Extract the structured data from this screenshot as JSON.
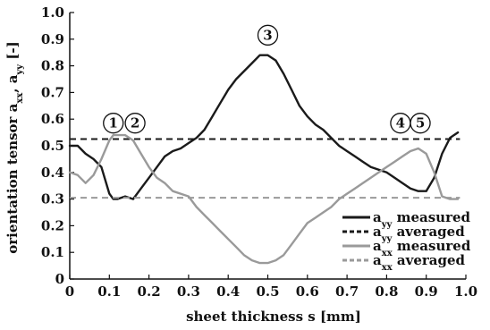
{
  "chart_data": {
    "type": "line",
    "xlabel": "sheet thickness s [mm]",
    "ylabel": "orientation tensor a",
    "ylabel_parts": {
      "main": "orientation tensor a",
      "sub1": "xx",
      "sep": ", a",
      "sub2": "yy",
      "tail": " [-]"
    },
    "xlim": [
      0,
      1.0
    ],
    "ylim": [
      0,
      1.0
    ],
    "x_ticks": [
      "0",
      "0.1",
      "0.2",
      "0.3",
      "0.4",
      "0.5",
      "0.6",
      "0.7",
      "0.8",
      "0.9",
      "1.0"
    ],
    "y_ticks": [
      "0",
      "0.1",
      "0.2",
      "0.3",
      "0.4",
      "0.5",
      "0.6",
      "0.7",
      "0.8",
      "0.9",
      "1.0"
    ],
    "grid": false,
    "legend_position": "bottom-right",
    "series": [
      {
        "name": "a_yy measured",
        "legend_main": "a",
        "legend_sub": "yy",
        "legend_tail": " measured",
        "style": "solid",
        "color": "#1a1a1a",
        "x": [
          0.0,
          0.02,
          0.04,
          0.06,
          0.08,
          0.1,
          0.11,
          0.12,
          0.14,
          0.16,
          0.18,
          0.2,
          0.22,
          0.24,
          0.26,
          0.28,
          0.3,
          0.32,
          0.34,
          0.36,
          0.38,
          0.4,
          0.42,
          0.44,
          0.46,
          0.48,
          0.5,
          0.52,
          0.54,
          0.56,
          0.58,
          0.6,
          0.62,
          0.64,
          0.66,
          0.68,
          0.7,
          0.72,
          0.74,
          0.76,
          0.78,
          0.8,
          0.82,
          0.84,
          0.86,
          0.88,
          0.9,
          0.92,
          0.94,
          0.96,
          0.98
        ],
        "values": [
          0.5,
          0.5,
          0.47,
          0.45,
          0.42,
          0.32,
          0.3,
          0.3,
          0.31,
          0.3,
          0.34,
          0.38,
          0.42,
          0.46,
          0.48,
          0.49,
          0.51,
          0.53,
          0.56,
          0.61,
          0.66,
          0.71,
          0.75,
          0.78,
          0.81,
          0.84,
          0.84,
          0.82,
          0.77,
          0.71,
          0.65,
          0.61,
          0.58,
          0.56,
          0.53,
          0.5,
          0.48,
          0.46,
          0.44,
          0.42,
          0.41,
          0.4,
          0.38,
          0.36,
          0.34,
          0.33,
          0.33,
          0.38,
          0.47,
          0.53,
          0.55
        ]
      },
      {
        "name": "a_yy averaged",
        "legend_main": "a",
        "legend_sub": "yy",
        "legend_tail": " averaged",
        "style": "dashed",
        "color": "#1a1a1a",
        "x": [
          0.0,
          0.985
        ],
        "values": [
          0.525,
          0.525
        ]
      },
      {
        "name": "a_xx measured",
        "legend_main": "a",
        "legend_sub": "xx",
        "legend_tail": " measured",
        "style": "solid",
        "color": "#9a9a9a",
        "x": [
          0.0,
          0.02,
          0.04,
          0.06,
          0.08,
          0.1,
          0.11,
          0.12,
          0.14,
          0.16,
          0.18,
          0.2,
          0.22,
          0.24,
          0.26,
          0.28,
          0.3,
          0.32,
          0.34,
          0.36,
          0.38,
          0.4,
          0.42,
          0.44,
          0.46,
          0.48,
          0.5,
          0.52,
          0.54,
          0.56,
          0.58,
          0.6,
          0.62,
          0.64,
          0.66,
          0.68,
          0.7,
          0.72,
          0.74,
          0.76,
          0.78,
          0.8,
          0.82,
          0.84,
          0.86,
          0.88,
          0.9,
          0.92,
          0.94,
          0.96,
          0.98
        ],
        "values": [
          0.4,
          0.39,
          0.36,
          0.39,
          0.45,
          0.52,
          0.54,
          0.54,
          0.54,
          0.52,
          0.47,
          0.42,
          0.38,
          0.36,
          0.33,
          0.32,
          0.31,
          0.27,
          0.24,
          0.21,
          0.18,
          0.15,
          0.12,
          0.09,
          0.07,
          0.06,
          0.06,
          0.07,
          0.09,
          0.13,
          0.17,
          0.21,
          0.23,
          0.25,
          0.27,
          0.3,
          0.32,
          0.34,
          0.36,
          0.38,
          0.4,
          0.42,
          0.44,
          0.46,
          0.48,
          0.49,
          0.47,
          0.4,
          0.31,
          0.3,
          0.3
        ]
      },
      {
        "name": "a_xx averaged",
        "legend_main": "a",
        "legend_sub": "xx",
        "legend_tail": " averaged",
        "style": "dashed",
        "color": "#9a9a9a",
        "x": [
          0.0,
          0.985
        ],
        "values": [
          0.305,
          0.305
        ]
      }
    ],
    "annotations": [
      {
        "label": "1",
        "x": 0.11,
        "y": 0.585
      },
      {
        "label": "2",
        "x": 0.165,
        "y": 0.585
      },
      {
        "label": "3",
        "x": 0.5,
        "y": 0.915
      },
      {
        "label": "4",
        "x": 0.835,
        "y": 0.585
      },
      {
        "label": "5",
        "x": 0.885,
        "y": 0.585
      }
    ]
  }
}
